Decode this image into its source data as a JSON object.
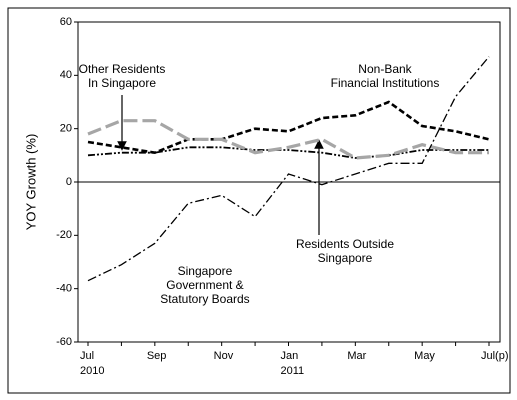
{
  "chart_data": {
    "type": "line",
    "y_label": "YOY Growth (%)",
    "categories": [
      "Jul\n2010",
      null,
      "Sep",
      null,
      "Nov",
      null,
      "Jan\n2011",
      null,
      "Mar",
      null,
      "May",
      null,
      "Jul(p)"
    ],
    "series": [
      {
        "name": "Non-Bank\nFinancial Institutions",
        "color": "#000000",
        "values": [
          15,
          13,
          11,
          16,
          16,
          20,
          19,
          24,
          25,
          30,
          21,
          19,
          16
        ]
      },
      {
        "name": "Other Residents\nIn Singapore",
        "color": "#000000",
        "values": [
          10,
          11,
          11,
          13,
          13,
          12,
          12,
          11,
          9,
          10,
          12,
          12,
          12
        ]
      },
      {
        "name": "Residents Outside\nSingapore",
        "color": "#a6a6a6",
        "values": [
          18,
          23,
          23,
          16,
          16,
          11,
          13,
          16,
          9,
          10,
          14,
          11,
          11
        ]
      },
      {
        "name": "Singapore\nGovernment &\nStatutory Boards",
        "color": "#000000",
        "values": [
          -37,
          -31,
          -23,
          -8,
          -5,
          -13,
          3,
          -1,
          3,
          7,
          7,
          32,
          47
        ]
      }
    ],
    "ylim": [
      -60,
      60
    ],
    "yticks": [
      -60,
      -40,
      -20,
      0,
      20,
      40,
      60
    ]
  }
}
